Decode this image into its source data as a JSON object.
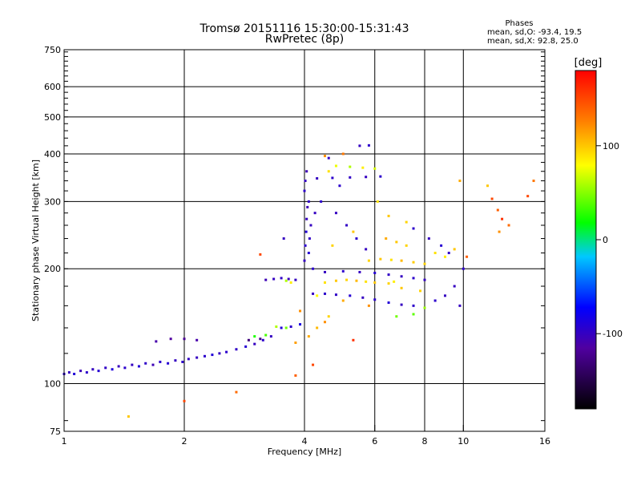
{
  "chart_data": {
    "type": "scatter",
    "title": "Tromsø 20151116 15:30:00-15:31:43",
    "subtitle": "RwPretec (8p)",
    "stats": {
      "header": "Phases",
      "line1": "mean, sd,O: -93.4, 19.5",
      "line2": "mean, sd,X:  92.8, 25.0"
    },
    "xlabel": "Frequency [MHz]",
    "ylabel": "Stationary phase Virtual Height [km]",
    "x_scale": "log",
    "y_scale": "log",
    "xlim": [
      1,
      16
    ],
    "ylim": [
      75,
      750
    ],
    "xticks": [
      {
        "value": 1,
        "label": "1"
      },
      {
        "value": 2,
        "label": "2"
      },
      {
        "value": 4,
        "label": "4"
      },
      {
        "value": 6,
        "label": "6"
      },
      {
        "value": 8,
        "label": "8"
      },
      {
        "value": 10,
        "label": "10"
      },
      {
        "value": 16,
        "label": "16"
      }
    ],
    "yticks": [
      {
        "value": 75,
        "label": "75"
      },
      {
        "value": 100,
        "label": "100"
      },
      {
        "value": 200,
        "label": "200"
      },
      {
        "value": 300,
        "label": "300"
      },
      {
        "value": 400,
        "label": "400"
      },
      {
        "value": 500,
        "label": "500"
      },
      {
        "value": 600,
        "label": "600"
      },
      {
        "value": 750,
        "label": "750"
      }
    ],
    "x_grid": [
      2,
      4,
      6,
      8,
      10
    ],
    "y_grid": [
      100,
      200,
      300,
      400,
      500,
      600
    ],
    "colorbar": {
      "label": "[deg]",
      "range": [
        -180,
        180
      ],
      "ticks": [
        {
          "value": 100,
          "label": "100"
        },
        {
          "value": 0,
          "label": "0"
        },
        {
          "value": -100,
          "label": "-100"
        }
      ]
    },
    "series": [
      {
        "points": [
          [
            1.0,
            106,
            -95
          ],
          [
            1.03,
            107,
            -100
          ],
          [
            1.06,
            106,
            -90
          ],
          [
            1.1,
            108,
            -105
          ],
          [
            1.14,
            107,
            -95
          ],
          [
            1.18,
            109,
            -100
          ],
          [
            1.22,
            108,
            -92
          ],
          [
            1.27,
            110,
            -98
          ],
          [
            1.32,
            109,
            -88
          ],
          [
            1.37,
            111,
            -102
          ],
          [
            1.42,
            110,
            -95
          ],
          [
            1.48,
            112,
            -100
          ],
          [
            1.54,
            111,
            -90
          ],
          [
            1.6,
            113,
            -97
          ],
          [
            1.67,
            112,
            -105
          ],
          [
            1.74,
            114,
            -95
          ],
          [
            1.82,
            113,
            -92
          ],
          [
            1.9,
            115,
            -100
          ],
          [
            1.98,
            114,
            -95
          ],
          [
            2.05,
            116,
            -98
          ],
          [
            2.15,
            117,
            -100
          ],
          [
            2.25,
            118,
            -95
          ],
          [
            2.35,
            119,
            -90
          ],
          [
            2.45,
            120,
            -100
          ],
          [
            2.55,
            121,
            -95
          ],
          [
            2.7,
            123,
            -98
          ],
          [
            2.85,
            125,
            -92
          ],
          [
            3.0,
            127,
            -100
          ],
          [
            3.15,
            130,
            -95
          ],
          [
            3.3,
            133,
            -100
          ],
          [
            1.7,
            129,
            -110
          ],
          [
            1.85,
            131,
            -115
          ],
          [
            2.0,
            131,
            -120
          ],
          [
            2.15,
            130,
            -110
          ],
          [
            2.9,
            130,
            -130
          ],
          [
            3.1,
            131,
            -125
          ],
          [
            3.2,
            187,
            -105
          ],
          [
            3.35,
            188,
            -100
          ],
          [
            3.5,
            189,
            -98
          ],
          [
            3.65,
            188,
            -102
          ],
          [
            3.8,
            187,
            -100
          ],
          [
            3.5,
            140,
            -90
          ],
          [
            3.7,
            141,
            -95
          ],
          [
            3.9,
            143,
            -85
          ],
          [
            4.0,
            210,
            -100
          ],
          [
            4.02,
            230,
            -95
          ],
          [
            4.04,
            250,
            -90
          ],
          [
            4.05,
            270,
            -100
          ],
          [
            4.07,
            290,
            -105
          ],
          [
            4.1,
            220,
            -92
          ],
          [
            4.12,
            240,
            -98
          ],
          [
            4.15,
            260,
            -100
          ],
          [
            4.2,
            200,
            -95
          ],
          [
            4.25,
            280,
            -100
          ],
          [
            4.0,
            320,
            -95
          ],
          [
            4.02,
            340,
            -100
          ],
          [
            4.05,
            360,
            -105
          ],
          [
            4.1,
            300,
            -98
          ],
          [
            4.2,
            172,
            -100
          ],
          [
            4.5,
            172,
            -95
          ],
          [
            4.8,
            171,
            -98
          ],
          [
            5.2,
            170,
            -92
          ],
          [
            5.6,
            168,
            -100
          ],
          [
            6.0,
            166,
            -95
          ],
          [
            6.5,
            163,
            -90
          ],
          [
            7.0,
            161,
            -100
          ],
          [
            7.5,
            160,
            -96
          ],
          [
            4.5,
            196,
            -100
          ],
          [
            5.0,
            197,
            -95
          ],
          [
            5.5,
            196,
            -100
          ],
          [
            6.0,
            195,
            -92
          ],
          [
            6.5,
            193,
            -98
          ],
          [
            7.0,
            191,
            -100
          ],
          [
            7.5,
            189,
            -95
          ],
          [
            8.0,
            187,
            -100
          ],
          [
            4.3,
            345,
            -100
          ],
          [
            4.7,
            346,
            -95
          ],
          [
            5.2,
            347,
            -98
          ],
          [
            5.7,
            348,
            -100
          ],
          [
            6.2,
            349,
            -95
          ],
          [
            5.5,
            420,
            -100
          ],
          [
            5.8,
            421,
            -95
          ],
          [
            7.5,
            255,
            -95
          ],
          [
            8.2,
            240,
            -100
          ],
          [
            8.8,
            230,
            -92
          ],
          [
            9.2,
            220,
            -98
          ],
          [
            9.5,
            180,
            -100
          ],
          [
            10.0,
            200,
            -95
          ],
          [
            9.8,
            160,
            -100
          ],
          [
            8.5,
            165,
            -95
          ],
          [
            9.0,
            170,
            -100
          ],
          [
            4.4,
            300,
            -95
          ],
          [
            4.8,
            280,
            -100
          ],
          [
            5.1,
            260,
            -98
          ],
          [
            5.4,
            240,
            -95
          ],
          [
            5.7,
            225,
            -100
          ],
          [
            3.55,
            240,
            -100
          ],
          [
            4.6,
            390,
            -98
          ],
          [
            4.9,
            330,
            -95
          ]
        ]
      },
      {
        "points": [
          [
            3.0,
            133,
            25
          ],
          [
            3.2,
            134,
            35
          ],
          [
            3.4,
            141,
            60
          ],
          [
            3.6,
            140,
            45
          ],
          [
            3.8,
            128,
            115
          ],
          [
            4.1,
            133,
            110
          ],
          [
            4.3,
            140,
            105
          ],
          [
            4.5,
            145,
            120
          ],
          [
            4.6,
            150,
            95
          ],
          [
            4.5,
            184,
            90
          ],
          [
            4.8,
            186,
            100
          ],
          [
            5.1,
            187,
            95
          ],
          [
            5.4,
            186,
            105
          ],
          [
            5.7,
            185,
            90
          ],
          [
            6.0,
            184,
            100
          ],
          [
            6.5,
            183,
            95
          ],
          [
            5.8,
            210,
            95
          ],
          [
            6.2,
            212,
            100
          ],
          [
            6.6,
            211,
            90
          ],
          [
            7.0,
            210,
            105
          ],
          [
            7.5,
            208,
            98
          ],
          [
            8.0,
            206,
            95
          ],
          [
            4.8,
            372,
            75
          ],
          [
            5.2,
            370,
            60
          ],
          [
            5.6,
            368,
            85
          ],
          [
            6.0,
            366,
            70
          ],
          [
            6.4,
            240,
            110
          ],
          [
            6.8,
            235,
            100
          ],
          [
            7.2,
            230,
            95
          ],
          [
            6.8,
            150,
            45
          ],
          [
            7.5,
            152,
            40
          ],
          [
            8.0,
            158,
            55
          ],
          [
            4.5,
            395,
            120
          ],
          [
            5.0,
            400,
            130
          ],
          [
            4.6,
            360,
            90
          ],
          [
            9.8,
            340,
            110
          ],
          [
            11.5,
            330,
            100
          ],
          [
            11.8,
            305,
            150
          ],
          [
            12.2,
            285,
            140
          ],
          [
            12.5,
            270,
            160
          ],
          [
            13.0,
            260,
            135
          ],
          [
            12.3,
            250,
            120
          ],
          [
            14.5,
            310,
            150
          ],
          [
            15.0,
            340,
            130
          ],
          [
            3.6,
            186,
            60
          ],
          [
            3.7,
            184,
            85
          ],
          [
            4.3,
            170,
            80
          ],
          [
            5.0,
            165,
            110
          ],
          [
            5.8,
            160,
            120
          ],
          [
            7.0,
            178,
            100
          ],
          [
            7.8,
            175,
            95
          ],
          [
            8.5,
            220,
            90
          ],
          [
            9.0,
            215,
            85
          ],
          [
            9.5,
            225,
            100
          ],
          [
            6.1,
            300,
            90
          ],
          [
            6.5,
            275,
            100
          ],
          [
            7.2,
            265,
            95
          ],
          [
            3.1,
            218,
            150
          ],
          [
            2.7,
            95,
            135
          ],
          [
            2.0,
            90,
            150
          ],
          [
            1.45,
            82,
            100
          ],
          [
            3.8,
            105,
            140
          ],
          [
            4.2,
            112,
            150
          ],
          [
            5.3,
            130,
            160
          ],
          [
            3.9,
            155,
            120
          ],
          [
            4.7,
            230,
            95
          ],
          [
            5.3,
            250,
            100
          ],
          [
            6.7,
            185,
            85
          ],
          [
            10.2,
            215,
            140
          ]
        ]
      }
    ]
  }
}
